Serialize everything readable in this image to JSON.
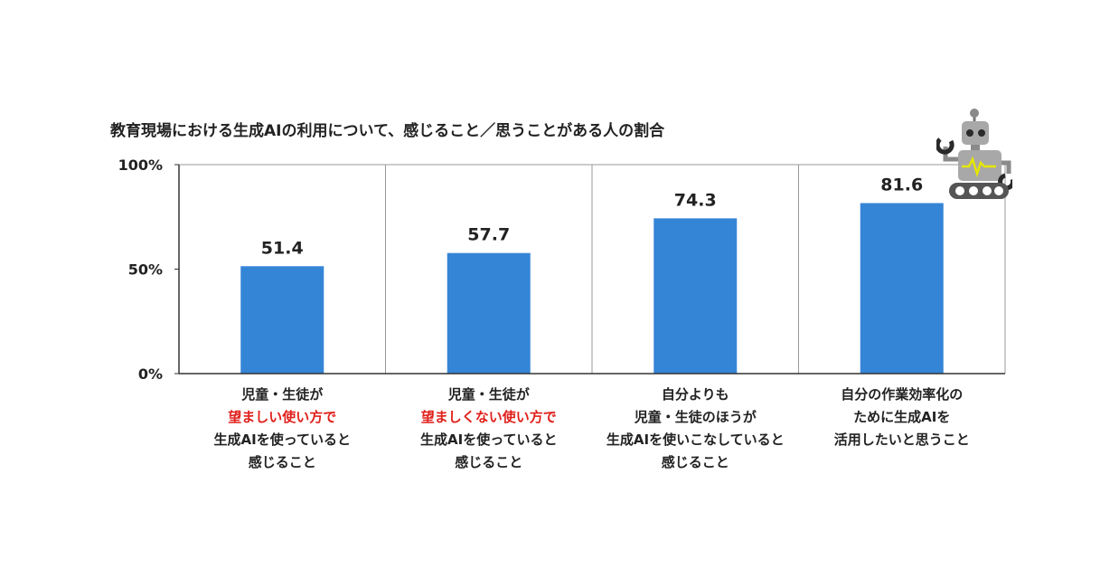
{
  "title": "教育現場における生成AIの利用について、感じること／思うことがある人の割合",
  "colors": {
    "bar": "#3585d6",
    "highlight": "#e0201b",
    "axis": "#333333",
    "grid": "#999999"
  },
  "chart_data": {
    "type": "bar",
    "title": "教育現場における生成AIの利用について、感じること／思うことがある人の割合",
    "categories": [
      {
        "lines": [
          {
            "text": "児童・生徒が"
          },
          {
            "text": "望ましい使い方で",
            "highlight": true
          },
          {
            "text": "生成AIを使っていると"
          },
          {
            "text": "感じること"
          }
        ]
      },
      {
        "lines": [
          {
            "text": "児童・生徒が"
          },
          {
            "text": "望ましくない使い方で",
            "highlight": true
          },
          {
            "text": "生成AIを使っていると"
          },
          {
            "text": "感じること"
          }
        ]
      },
      {
        "lines": [
          {
            "text": "自分よりも"
          },
          {
            "text": "児童・生徒のほうが"
          },
          {
            "text": "生成AIを使いこなしていると"
          },
          {
            "text": "感じること"
          }
        ]
      },
      {
        "lines": [
          {
            "text": "自分の作業効率化の"
          },
          {
            "text": "ために生成AIを"
          },
          {
            "text": "活用したいと思うこと"
          }
        ]
      }
    ],
    "values": [
      51.4,
      57.7,
      74.3,
      81.6
    ],
    "value_labels": [
      "51.4",
      "57.7",
      "74.3",
      "81.6"
    ],
    "ylim": [
      0,
      100
    ],
    "yticks": [
      {
        "value": 0,
        "label": "0%"
      },
      {
        "value": 50,
        "label": "50%"
      },
      {
        "value": 100,
        "label": "100%"
      }
    ],
    "xlabel": "",
    "ylabel": "",
    "legend": "none",
    "grid": "vertical separators"
  }
}
